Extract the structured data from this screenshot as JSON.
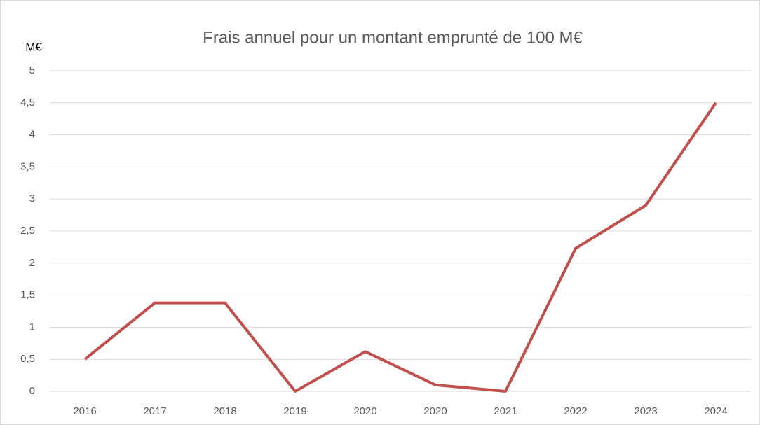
{
  "chart_data": {
    "type": "line",
    "title": "Frais annuel pour un montant emprunté de 100 M€",
    "y_label": "M€",
    "categories": [
      "2016",
      "2017",
      "2018",
      "2019",
      "2020",
      "2020",
      "2021",
      "2022",
      "2023",
      "2024"
    ],
    "series": [
      {
        "color": "#c0504d",
        "values": [
          0.5,
          1.38,
          1.38,
          0,
          0.62,
          0.1,
          0,
          2.23,
          2.9,
          4.5
        ]
      }
    ],
    "ylim": [
      0,
      5
    ],
    "yticks": [
      0,
      {
        "value": 0.5,
        "label": "0,5"
      },
      1,
      {
        "value": 1.5,
        "label": "1,5"
      },
      2,
      {
        "value": 2.5,
        "label": "2,5"
      },
      3,
      {
        "value": 3.5,
        "label": "3,5"
      },
      4,
      {
        "value": 4.5,
        "label": "4,5"
      },
      5
    ],
    "grid": true
  }
}
